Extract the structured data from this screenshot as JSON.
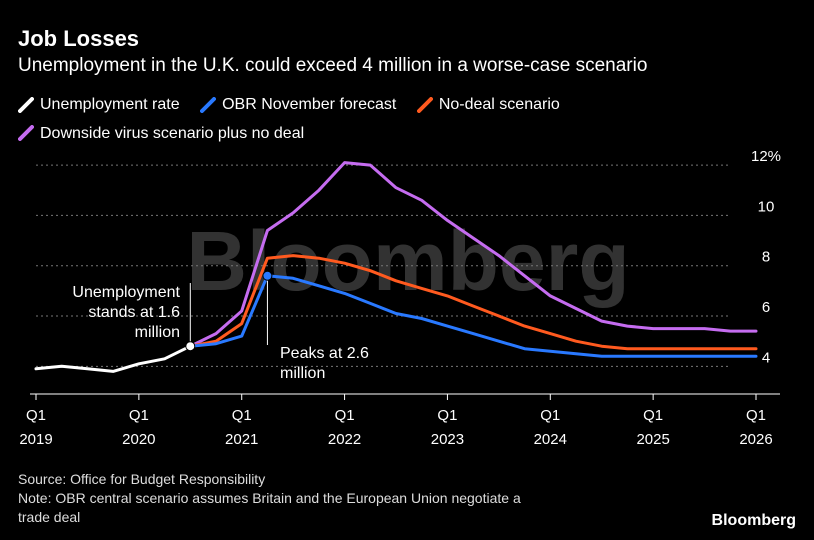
{
  "header": {
    "title": "Job Losses",
    "subtitle": "Unemployment in the U.K. could exceed 4 million in a worse-case scenario"
  },
  "chart_data": {
    "type": "line",
    "title": "Job Losses",
    "subtitle": "Unemployment in the U.K. could exceed 4 million in a worse-case scenario",
    "xlabel": "",
    "ylabel": "",
    "x": [
      2019.0,
      2019.25,
      2019.5,
      2019.75,
      2020.0,
      2020.25,
      2020.5,
      2020.75,
      2021.0,
      2021.25,
      2021.5,
      2021.75,
      2022.0,
      2022.25,
      2022.5,
      2022.75,
      2023.0,
      2023.25,
      2023.5,
      2023.75,
      2024.0,
      2024.25,
      2024.5,
      2024.75,
      2025.0,
      2025.25,
      2025.5,
      2025.75,
      2026.0
    ],
    "series": [
      {
        "name": "Unemployment rate",
        "color": "#ffffff",
        "x": [
          2019.0,
          2019.25,
          2019.5,
          2019.75,
          2020.0,
          2020.25,
          2020.5
        ],
        "values": [
          3.9,
          4.0,
          3.9,
          3.8,
          4.1,
          4.3,
          4.8
        ]
      },
      {
        "name": "OBR November forecast",
        "color": "#2979ff",
        "x": [
          2020.5,
          2020.75,
          2021.0,
          2021.25,
          2021.5,
          2021.75,
          2022.0,
          2022.25,
          2022.5,
          2022.75,
          2023.0,
          2023.25,
          2023.5,
          2023.75,
          2024.0,
          2024.25,
          2024.5,
          2024.75,
          2025.0,
          2025.25,
          2025.5,
          2025.75,
          2026.0
        ],
        "values": [
          4.8,
          4.9,
          5.2,
          7.6,
          7.5,
          7.2,
          6.9,
          6.5,
          6.1,
          5.9,
          5.6,
          5.3,
          5.0,
          4.7,
          4.6,
          4.5,
          4.4,
          4.4,
          4.4,
          4.4,
          4.4,
          4.4,
          4.4
        ]
      },
      {
        "name": "No-deal scenario",
        "color": "#ff5a1f",
        "x": [
          2020.5,
          2020.75,
          2021.0,
          2021.25,
          2021.5,
          2021.75,
          2022.0,
          2022.25,
          2022.5,
          2022.75,
          2023.0,
          2023.25,
          2023.5,
          2023.75,
          2024.0,
          2024.25,
          2024.5,
          2024.75,
          2025.0,
          2025.25,
          2025.5,
          2025.75,
          2026.0
        ],
        "values": [
          4.8,
          5.0,
          5.7,
          8.3,
          8.4,
          8.3,
          8.1,
          7.8,
          7.4,
          7.1,
          6.8,
          6.4,
          6.0,
          5.6,
          5.3,
          5.0,
          4.8,
          4.7,
          4.7,
          4.7,
          4.7,
          4.7,
          4.7
        ]
      },
      {
        "name": "Downside virus scenario plus no deal",
        "color": "#c56cf0",
        "x": [
          2020.5,
          2020.75,
          2021.0,
          2021.25,
          2021.5,
          2021.75,
          2022.0,
          2022.25,
          2022.5,
          2022.75,
          2023.0,
          2023.25,
          2023.5,
          2023.75,
          2024.0,
          2024.25,
          2024.5,
          2024.75,
          2025.0,
          2025.25,
          2025.5,
          2025.75,
          2026.0
        ],
        "values": [
          4.8,
          5.3,
          6.2,
          9.4,
          10.1,
          11.0,
          12.1,
          12.0,
          11.1,
          10.6,
          9.8,
          9.1,
          8.4,
          7.6,
          6.8,
          6.3,
          5.8,
          5.6,
          5.5,
          5.5,
          5.5,
          5.4,
          5.4
        ]
      }
    ],
    "yticks": [
      4,
      6,
      8,
      10,
      12
    ],
    "ytick_labels": [
      "4",
      "6",
      "8",
      "10",
      "12%"
    ],
    "ylim": [
      2.9,
      12.6
    ],
    "xlim": [
      2019.0,
      2026.0
    ],
    "xticks": [
      {
        "value": 2019,
        "quarter": "Q1",
        "year": "2019"
      },
      {
        "value": 2020,
        "quarter": "Q1",
        "year": "2020"
      },
      {
        "value": 2021,
        "quarter": "Q1",
        "year": "2021"
      },
      {
        "value": 2022,
        "quarter": "Q1",
        "year": "2022"
      },
      {
        "value": 2023,
        "quarter": "Q1",
        "year": "2023"
      },
      {
        "value": 2024,
        "quarter": "Q1",
        "year": "2024"
      },
      {
        "value": 2025,
        "quarter": "Q1",
        "year": "2025"
      },
      {
        "value": 2026,
        "quarter": "Q1",
        "year": "2026"
      }
    ],
    "annotations": [
      {
        "name": "annotation-current",
        "lines": [
          "Unemployment",
          "stands at 1.6",
          "million"
        ],
        "x": 2020.5,
        "y": 4.8
      },
      {
        "name": "annotation-peak",
        "lines": [
          "Peaks at 2.6",
          "million"
        ],
        "x": 2021.25,
        "y": 7.6
      }
    ],
    "grid": true,
    "legend_position": "top-left"
  },
  "watermark": "Bloomberg",
  "footer": {
    "source": "Source: Office for Budget Responsibility",
    "note_line1": "Note: OBR central scenario assumes Britain and the European Union negotiate a",
    "note_line2": "trade deal"
  },
  "brand": "Bloomberg"
}
